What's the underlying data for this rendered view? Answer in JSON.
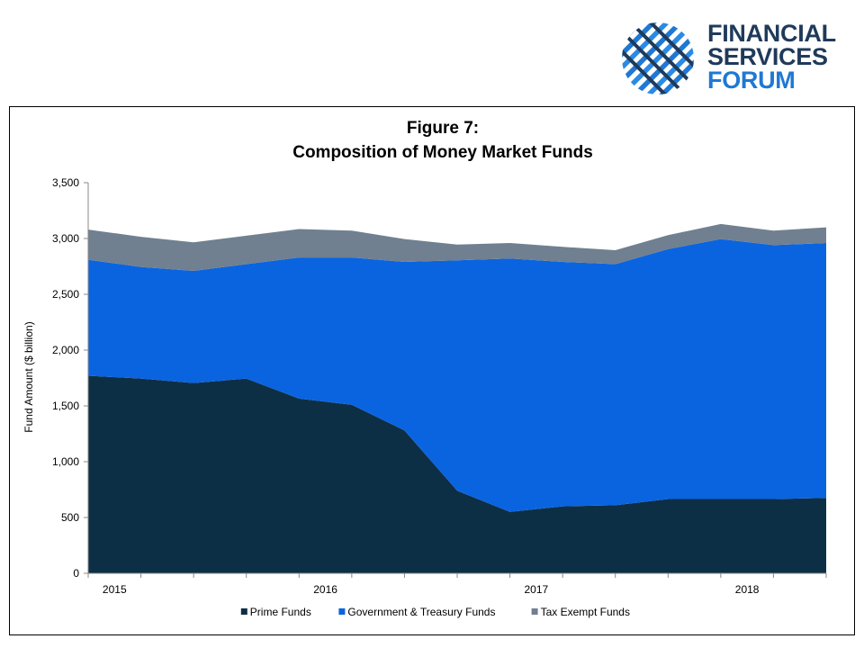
{
  "logo": {
    "line1": "FINANCIAL",
    "line2": "SERVICES",
    "line3": "FORUM",
    "colors": {
      "dark": "#1f3a5a",
      "blue": "#1f78d4"
    }
  },
  "chart_data": {
    "type": "area",
    "stacked": true,
    "title": "Figure 7:",
    "subtitle": "Composition of Money Market Funds",
    "xlabel": "",
    "ylabel": "Fund Amount ($ billion)",
    "ylim": [
      0,
      3500
    ],
    "yticks": [
      "0",
      "500",
      "1,000",
      "1,500",
      "2,000",
      "2,500",
      "3,000",
      "3,500"
    ],
    "ytick_values": [
      0,
      500,
      1000,
      1500,
      2000,
      2500,
      3000,
      3500
    ],
    "x": [
      "2014 Q4",
      "2015 Q1",
      "2015 Q2",
      "2015 Q3",
      "2015 Q4",
      "2016 Q1",
      "2016 Q2",
      "2016 Q3",
      "2016 Q4",
      "2017 Q1",
      "2017 Q2",
      "2017 Q3",
      "2017 Q4",
      "2018 Q1",
      "2018 Q2"
    ],
    "xtick_labels": [
      "2015",
      "2016",
      "2017",
      "2018"
    ],
    "xtick_label_after_index": [
      0,
      4,
      8,
      12
    ],
    "grid": false,
    "legend_position": "bottom",
    "series": [
      {
        "name": "Prime Funds",
        "color": "#0d2f45",
        "values": [
          1770,
          1745,
          1705,
          1745,
          1565,
          1510,
          1280,
          740,
          550,
          600,
          610,
          665,
          665,
          665,
          675
        ]
      },
      {
        "name": "Government & Treasury Funds",
        "color": "#0a64e0",
        "values": [
          1040,
          1000,
          1005,
          1025,
          1265,
          1320,
          1510,
          2065,
          2270,
          2190,
          2160,
          2240,
          2330,
          2275,
          2285
        ]
      },
      {
        "name": "Tax Exempt Funds",
        "color": "#708090",
        "values": [
          270,
          270,
          255,
          255,
          255,
          240,
          205,
          140,
          140,
          135,
          125,
          125,
          135,
          130,
          140
        ]
      }
    ]
  }
}
